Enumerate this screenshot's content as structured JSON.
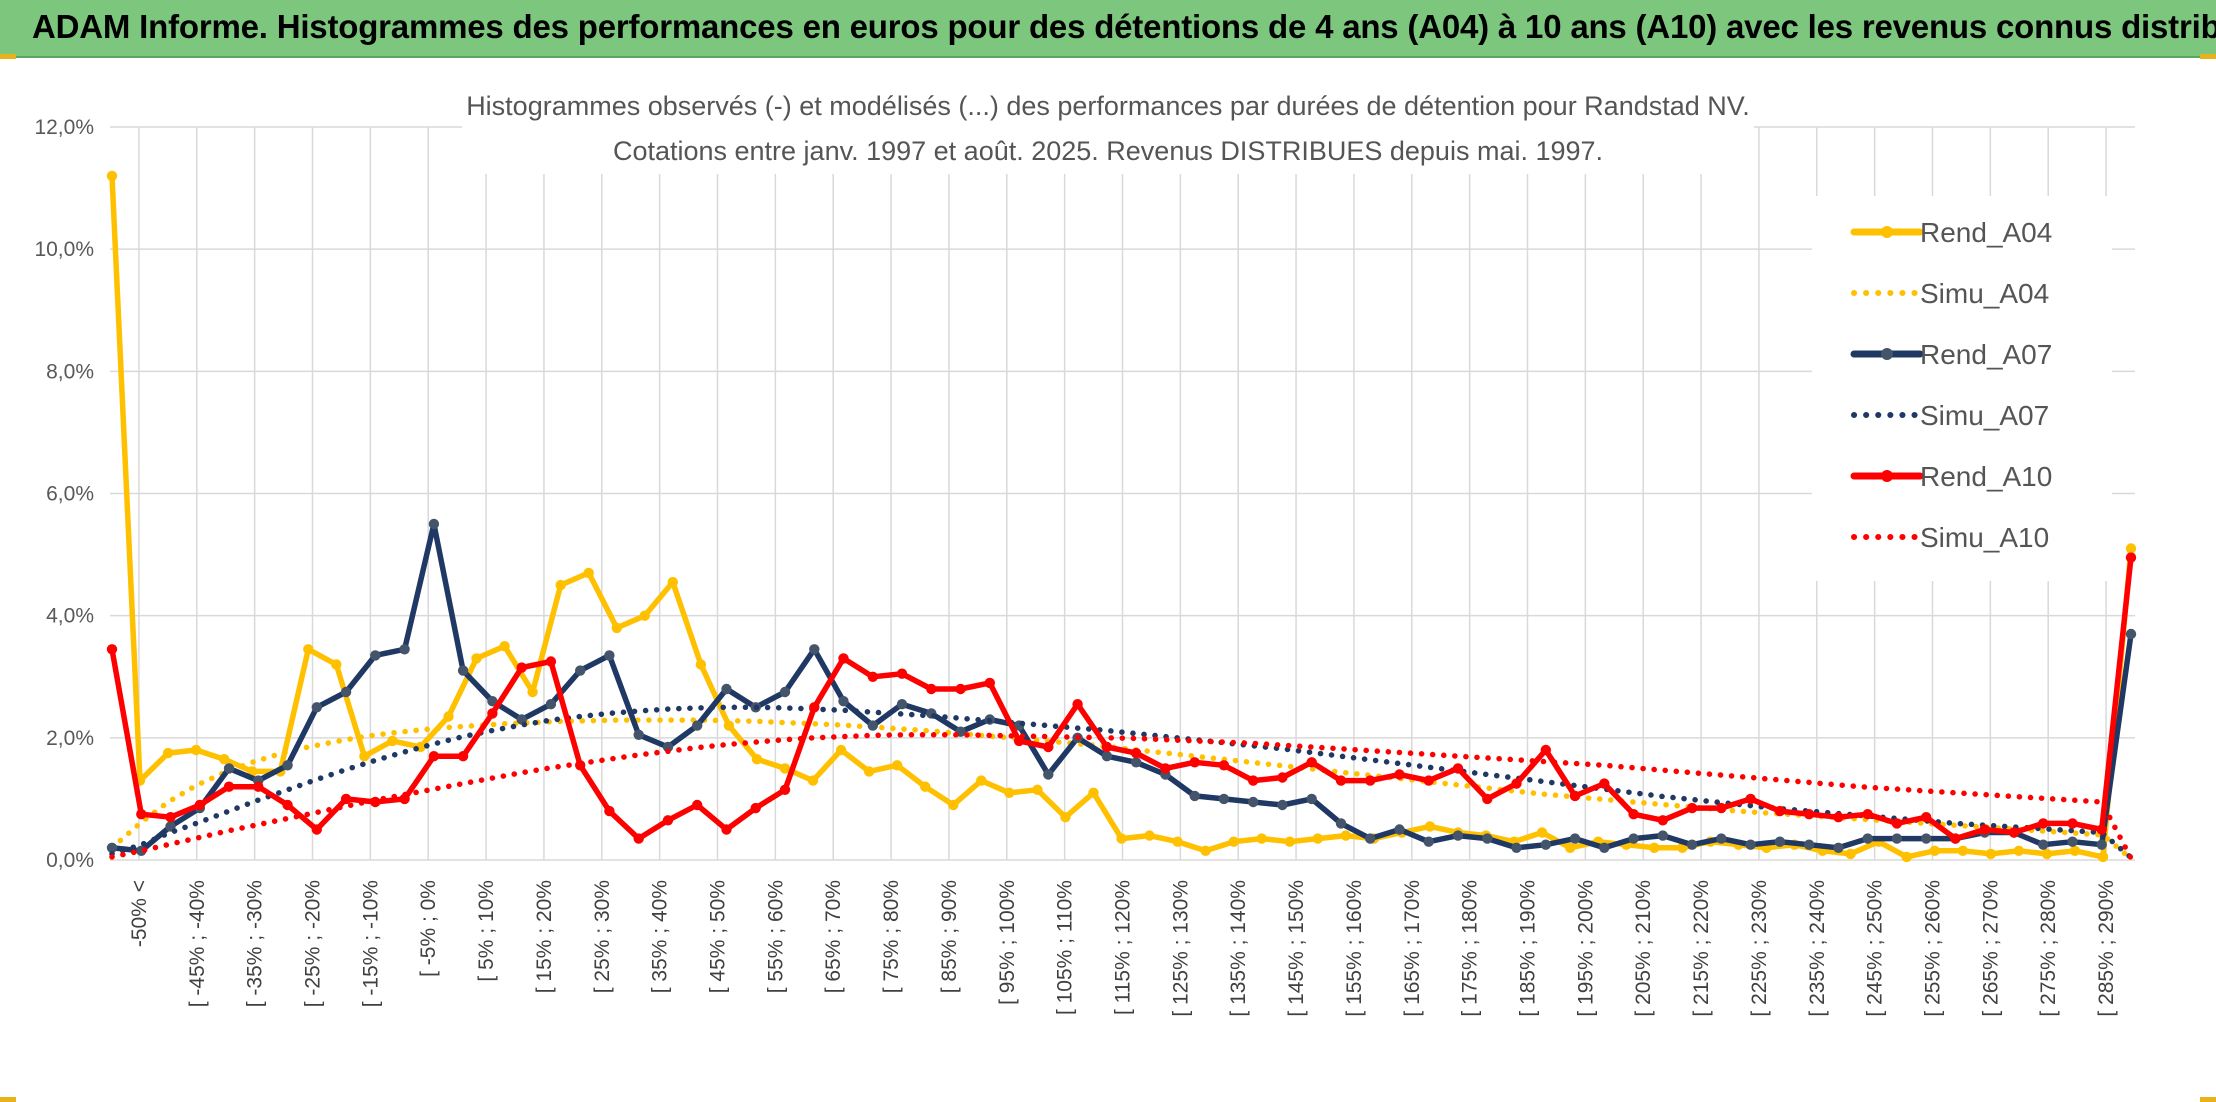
{
  "header": {
    "title": "ADAM Informe. Histogrammes des performances en euros pour des détentions de 4 ans (A04) à 10 ans (A10) avec les revenus connus distribués"
  },
  "chart_data": {
    "type": "line",
    "title": "Histogrammes observés (-) et modélisés (...) des performances par durées de détention pour Randstad NV.",
    "subtitle": "Cotations entre janv. 1997 et août. 2025. Revenus DISTRIBUES depuis mai. 1997.",
    "xlabel": "",
    "ylabel": "",
    "ylim": [
      0,
      12
    ],
    "y_ticks": [
      "0,0%",
      "2,0%",
      "4,0%",
      "6,0%",
      "8,0%",
      "10,0%",
      "12,0%"
    ],
    "grid": true,
    "legend_position": "right",
    "x_tick_labels": [
      "-50% <",
      "[ -45% ; -40%",
      "[ -35% ; -30%",
      "[ -25% ; -20%",
      "[ -15% ; -10%",
      "[ -5% ; 0%",
      "[ 5% ; 10%",
      "[ 15% ; 20%",
      "[ 25% ; 30%",
      "[ 35% ; 40%",
      "[ 45% ; 50%",
      "[ 55% ; 60%",
      "[ 65% ; 70%",
      "[ 75% ; 80%",
      "[ 85% ; 90%",
      "[ 95% ; 100%",
      "[ 105% ; 110%",
      "[ 115% ; 120%",
      "[ 125% ; 130%",
      "[ 135% ; 140%",
      "[ 145% ; 150%",
      "[ 155% ; 160%",
      "[ 165% ; 170%",
      "[ 175% ; 180%",
      "[ 185% ; 190%",
      "[ 195% ; 200%",
      "[ 205% ; 210%",
      "[ 215% ; 220%",
      "[ 225% ; 230%",
      "[ 235% ; 240%",
      "[ 245% ; 250%",
      "[ 255% ; 260%",
      "[ 265% ; 270%",
      "[ 275% ; 280%",
      "[ 285% ; 290%"
    ],
    "series": [
      {
        "name": "Rend_A04",
        "style": "solid",
        "markers": true,
        "color": "#FFC000",
        "values": [
          11.2,
          1.3,
          1.75,
          1.8,
          1.65,
          1.45,
          1.45,
          3.45,
          3.2,
          1.7,
          1.95,
          1.85,
          2.35,
          3.3,
          3.5,
          2.75,
          4.5,
          4.7,
          3.8,
          4.0,
          4.55,
          3.2,
          2.2,
          1.65,
          1.5,
          1.3,
          1.8,
          1.45,
          1.55,
          1.2,
          0.9,
          1.3,
          1.1,
          1.15,
          0.7,
          1.1,
          0.35,
          0.4,
          0.3,
          0.15,
          0.3,
          0.35,
          0.3,
          0.35,
          0.4,
          0.35,
          0.45,
          0.55,
          0.45,
          0.4,
          0.3,
          0.45,
          0.2,
          0.3,
          0.25,
          0.2,
          0.2,
          0.3,
          0.25,
          0.2,
          0.25,
          0.15,
          0.1,
          0.3,
          0.05,
          0.15,
          0.15,
          0.1,
          0.15,
          0.1,
          0.15,
          0.05,
          5.1
        ]
      },
      {
        "name": "Simu_A04",
        "style": "dotted",
        "markers": false,
        "color": "#FFC000",
        "values": [
          0.2,
          0.6,
          0.95,
          1.22,
          1.43,
          1.6,
          1.74,
          1.85,
          1.94,
          2.02,
          2.08,
          2.13,
          2.17,
          2.2,
          2.23,
          2.25,
          2.27,
          2.28,
          2.29,
          2.29,
          2.29,
          2.29,
          2.28,
          2.27,
          2.25,
          2.23,
          2.21,
          2.18,
          2.15,
          2.12,
          2.08,
          2.04,
          2.0,
          1.96,
          1.92,
          1.88,
          1.83,
          1.78,
          1.73,
          1.68,
          1.63,
          1.58,
          1.53,
          1.48,
          1.43,
          1.38,
          1.33,
          1.28,
          1.23,
          1.18,
          1.13,
          1.08,
          1.04,
          1.0,
          0.96,
          0.92,
          0.88,
          0.84,
          0.8,
          0.77,
          0.74,
          0.71,
          0.68,
          0.65,
          0.62,
          0.59,
          0.56,
          0.53,
          0.5,
          0.47,
          0.44,
          0.41,
          0.02
        ]
      },
      {
        "name": "Rend_A07",
        "style": "solid",
        "markers": true,
        "color": "#1F3864",
        "values": [
          0.2,
          0.15,
          0.55,
          0.85,
          1.5,
          1.3,
          1.55,
          2.5,
          2.75,
          3.35,
          3.45,
          5.5,
          3.1,
          2.6,
          2.3,
          2.55,
          3.1,
          3.35,
          2.05,
          1.85,
          2.2,
          2.8,
          2.5,
          2.75,
          3.45,
          2.6,
          2.2,
          2.55,
          2.4,
          2.1,
          2.3,
          2.2,
          1.4,
          2.0,
          1.7,
          1.6,
          1.4,
          1.05,
          1.0,
          0.95,
          0.9,
          1.0,
          0.6,
          0.35,
          0.5,
          0.3,
          0.4,
          0.35,
          0.2,
          0.25,
          0.35,
          0.2,
          0.35,
          0.4,
          0.25,
          0.35,
          0.25,
          0.3,
          0.25,
          0.2,
          0.35,
          0.35,
          0.35,
          0.35,
          0.45,
          0.45,
          0.25,
          0.3,
          0.25,
          3.7
        ]
      },
      {
        "name": "Simu_A07",
        "style": "dotted",
        "markers": false,
        "color": "#1F3864",
        "values": [
          0.1,
          0.25,
          0.45,
          0.62,
          0.8,
          0.98,
          1.15,
          1.32,
          1.48,
          1.63,
          1.77,
          1.9,
          2.02,
          2.12,
          2.21,
          2.29,
          2.35,
          2.4,
          2.44,
          2.47,
          2.49,
          2.5,
          2.5,
          2.49,
          2.47,
          2.45,
          2.42,
          2.39,
          2.36,
          2.32,
          2.28,
          2.24,
          2.2,
          2.16,
          2.12,
          2.07,
          2.02,
          1.97,
          1.92,
          1.87,
          1.82,
          1.76,
          1.7,
          1.64,
          1.58,
          1.52,
          1.46,
          1.4,
          1.34,
          1.28,
          1.22,
          1.16,
          1.1,
          1.04,
          0.99,
          0.94,
          0.89,
          0.84,
          0.8,
          0.76,
          0.72,
          0.68,
          0.64,
          0.6,
          0.57,
          0.54,
          0.51,
          0.48,
          0.45,
          0.04
        ]
      },
      {
        "name": "Rend_A10",
        "style": "solid",
        "markers": true,
        "color": "#FF0000",
        "values": [
          3.45,
          0.75,
          0.7,
          0.9,
          1.2,
          1.2,
          0.9,
          0.5,
          1.0,
          0.95,
          1.0,
          1.7,
          1.7,
          2.4,
          3.15,
          3.25,
          1.55,
          0.8,
          0.35,
          0.65,
          0.9,
          0.5,
          0.85,
          1.15,
          2.5,
          3.3,
          3.0,
          3.05,
          2.8,
          2.8,
          2.9,
          1.95,
          1.85,
          2.55,
          1.85,
          1.75,
          1.5,
          1.6,
          1.55,
          1.3,
          1.35,
          1.6,
          1.3,
          1.3,
          1.4,
          1.3,
          1.5,
          1.0,
          1.25,
          1.8,
          1.05,
          1.25,
          0.75,
          0.65,
          0.85,
          0.85,
          1.0,
          0.8,
          0.75,
          0.7,
          0.75,
          0.6,
          0.7,
          0.35,
          0.5,
          0.45,
          0.6,
          0.6,
          0.5,
          4.95
        ]
      },
      {
        "name": "Simu_A10",
        "style": "dotted",
        "markers": false,
        "color": "#FF0000",
        "values": [
          0.05,
          0.15,
          0.26,
          0.37,
          0.48,
          0.58,
          0.68,
          0.78,
          0.88,
          0.98,
          1.07,
          1.16,
          1.25,
          1.34,
          1.43,
          1.51,
          1.58,
          1.65,
          1.72,
          1.78,
          1.84,
          1.89,
          1.93,
          1.97,
          2.0,
          2.02,
          2.04,
          2.05,
          2.05,
          2.05,
          2.04,
          2.03,
          2.02,
          2.01,
          2.0,
          1.99,
          1.97,
          1.95,
          1.93,
          1.91,
          1.88,
          1.85,
          1.82,
          1.79,
          1.76,
          1.73,
          1.7,
          1.67,
          1.64,
          1.61,
          1.58,
          1.55,
          1.51,
          1.47,
          1.43,
          1.39,
          1.35,
          1.31,
          1.27,
          1.23,
          1.19,
          1.16,
          1.13,
          1.1,
          1.07,
          1.04,
          1.01,
          0.98,
          0.95,
          0.03
        ]
      }
    ]
  }
}
